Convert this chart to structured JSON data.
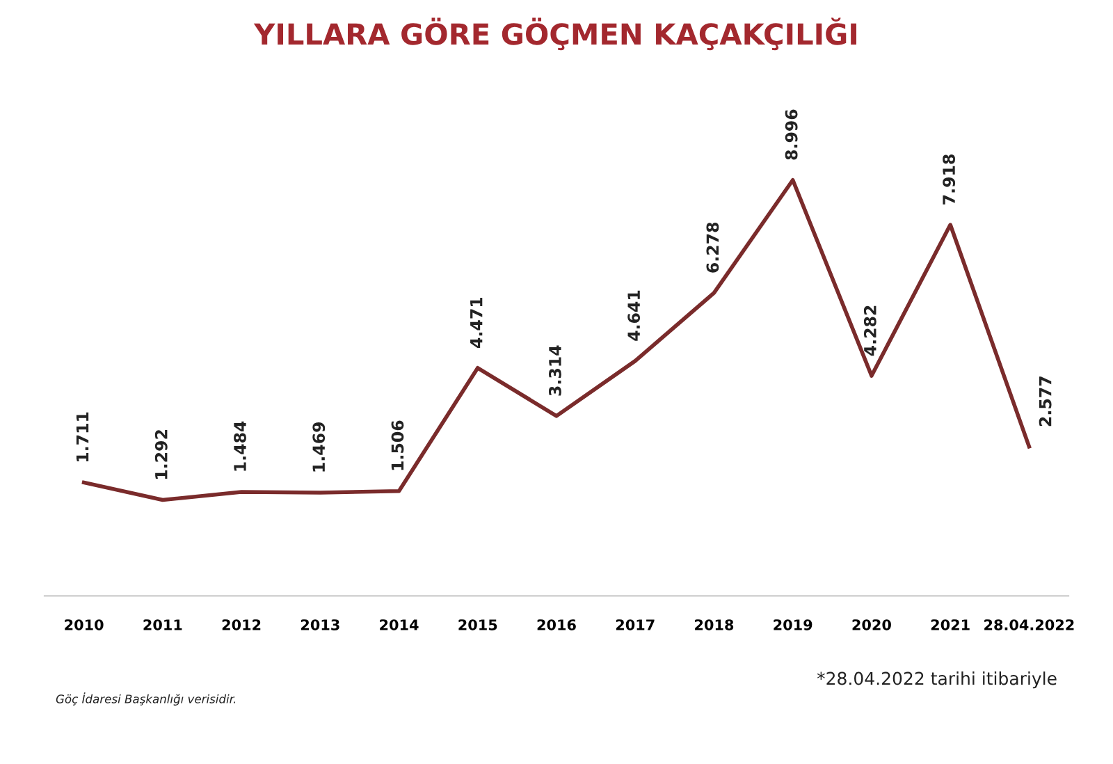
{
  "chart_data": {
    "type": "line",
    "title": "YILLARA GÖRE GÖÇMEN KAÇAKÇILIĞI",
    "categories": [
      "2010",
      "2011",
      "2012",
      "2013",
      "2014",
      "2015",
      "2016",
      "2017",
      "2018",
      "2019",
      "2020",
      "2021",
      "28.04.2022"
    ],
    "series": [
      {
        "color": "#7a2b2b",
        "values": [
          1711,
          1292,
          1484,
          1469,
          1506,
          4471,
          3314,
          4641,
          6278,
          8996,
          4282,
          7918,
          2577
        ],
        "value_labels": [
          "1.711",
          "1.292",
          "1.484",
          "1.469",
          "1.506",
          "4.471",
          "3.314",
          "4.641",
          "6.278",
          "8.996",
          "4.282",
          "7.918",
          "2.577"
        ]
      }
    ],
    "tick_labels": "x",
    "grid": false,
    "legend": false,
    "marker": "none",
    "line_style": "solid",
    "annotations": [
      "Göç İdaresi Başkanlığı verisidir.",
      "*28.04.2022 tarihi itibariyle"
    ]
  }
}
